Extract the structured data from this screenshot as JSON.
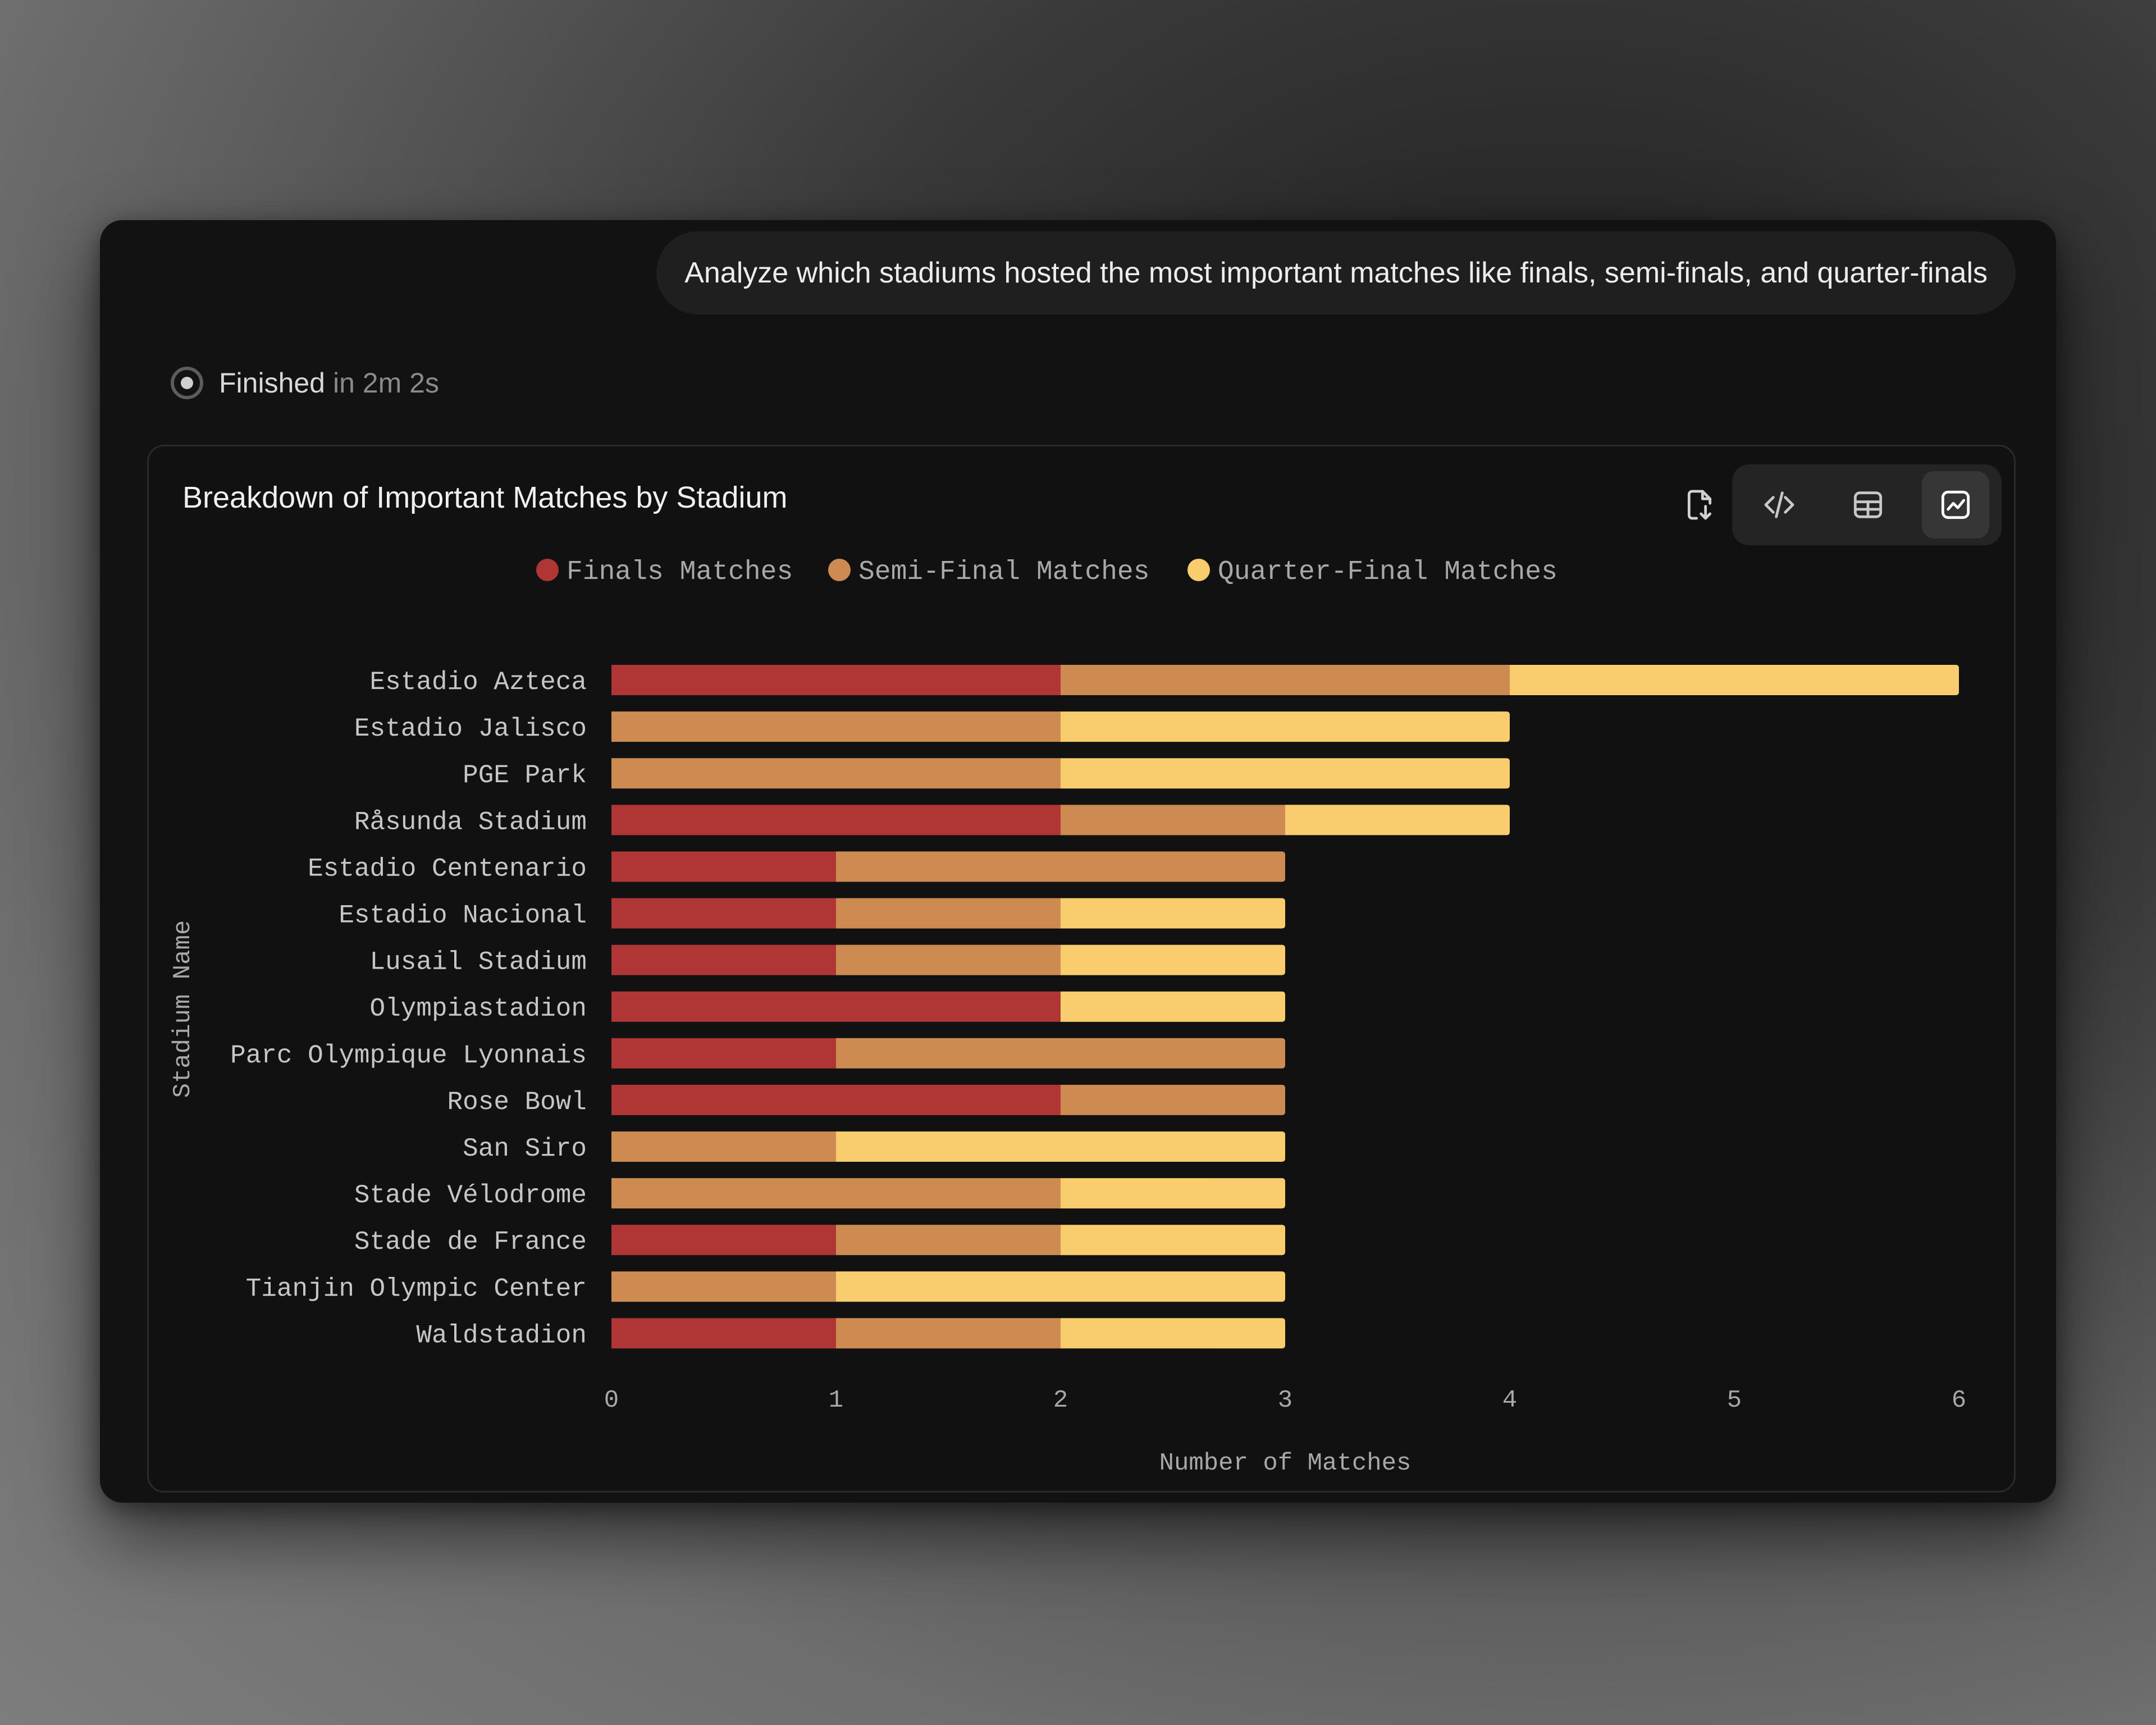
{
  "prompt": {
    "text": "Analyze which stadiums hosted the most important matches like finals, semi-finals, and quarter-finals"
  },
  "status": {
    "word": "Finished",
    "duration": "in 2m 2s"
  },
  "card": {
    "title": "Breakdown of Important Matches by Stadium",
    "icons": {
      "export": "file-export-icon",
      "code": "code-icon",
      "table": "table-icon",
      "chart": "chart-icon"
    }
  },
  "colors": {
    "finals": "#b03535",
    "semi": "#cd8b52",
    "quarter": "#f9cd6d",
    "axis_text": "#a8a8a8",
    "label_text": "#c6c6c6"
  },
  "chart_data": {
    "type": "bar",
    "orientation": "horizontal",
    "stacked": true,
    "title": "Breakdown of Important Matches by Stadium",
    "xlabel": "Number of Matches",
    "ylabel": "Stadium Name",
    "xlim": [
      0,
      6
    ],
    "xticks": [
      "0",
      "1",
      "2",
      "3",
      "4",
      "5",
      "6"
    ],
    "legend_position": "top",
    "categories": [
      "Estadio Azteca",
      "Estadio Jalisco",
      "PGE Park",
      "Råsunda Stadium",
      "Estadio Centenario",
      "Estadio Nacional",
      "Lusail Stadium",
      "Olympiastadion",
      "Parc Olympique Lyonnais",
      "Rose Bowl",
      "San Siro",
      "Stade Vélodrome",
      "Stade de France",
      "Tianjin Olympic Center",
      "Waldstadion"
    ],
    "series": [
      {
        "name": "Finals Matches",
        "key": "finals",
        "values": [
          2,
          0,
          0,
          2,
          1,
          1,
          1,
          2,
          1,
          2,
          0,
          0,
          1,
          0,
          1
        ]
      },
      {
        "name": "Semi-Final Matches",
        "key": "semi",
        "values": [
          2,
          2,
          2,
          1,
          2,
          1,
          1,
          0,
          2,
          1,
          1,
          2,
          1,
          1,
          1
        ]
      },
      {
        "name": "Quarter-Final Matches",
        "key": "quarter",
        "values": [
          2,
          2,
          2,
          1,
          0,
          1,
          1,
          1,
          0,
          0,
          2,
          1,
          1,
          2,
          1
        ]
      }
    ]
  }
}
